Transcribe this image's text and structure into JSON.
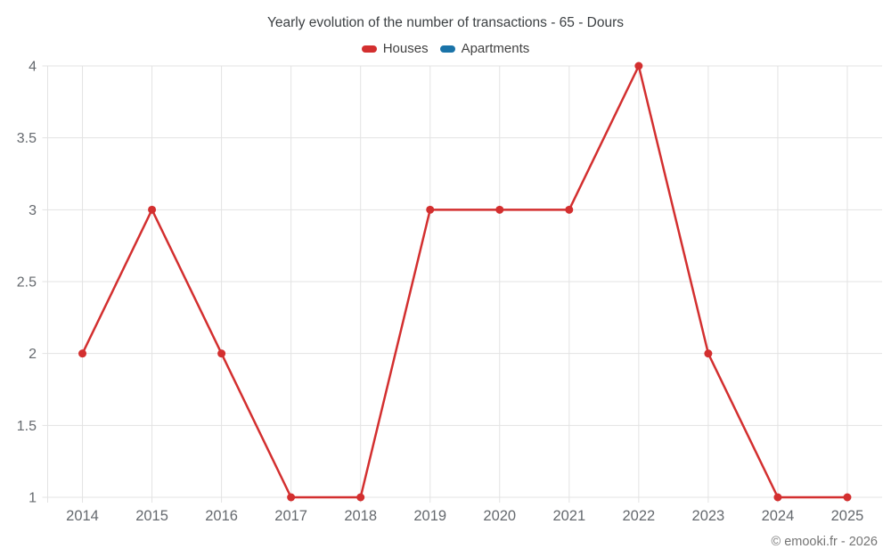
{
  "title": "Yearly evolution of the number of transactions - 65 - Dours",
  "legend": {
    "items": [
      {
        "label": "Houses",
        "color": "#d32f2f"
      },
      {
        "label": "Apartments",
        "color": "#1a73a8"
      }
    ]
  },
  "footer": {
    "credit": "© emooki.fr - 2026"
  },
  "style": {
    "grid_color": "#e3e3e3",
    "axis_label_color": "#65696e",
    "title_color": "#3c4043",
    "background": "#ffffff"
  },
  "chart_data": {
    "type": "line",
    "title": "Yearly evolution of the number of transactions - 65 - Dours",
    "categories": [
      "2014",
      "2015",
      "2016",
      "2017",
      "2018",
      "2019",
      "2020",
      "2021",
      "2022",
      "2023",
      "2024",
      "2025"
    ],
    "series": [
      {
        "name": "Houses",
        "color": "#d32f2f",
        "values": [
          2,
          3,
          2,
          1,
          1,
          3,
          3,
          3,
          4,
          2,
          1,
          1
        ]
      },
      {
        "name": "Apartments",
        "color": "#1a73a8",
        "values": []
      }
    ],
    "xlabel": "",
    "ylabel": "",
    "ylim": [
      1,
      4
    ],
    "y_ticks": [
      1,
      1.5,
      2,
      2.5,
      3,
      3.5,
      4
    ],
    "grid": true,
    "legend_position": "top"
  }
}
